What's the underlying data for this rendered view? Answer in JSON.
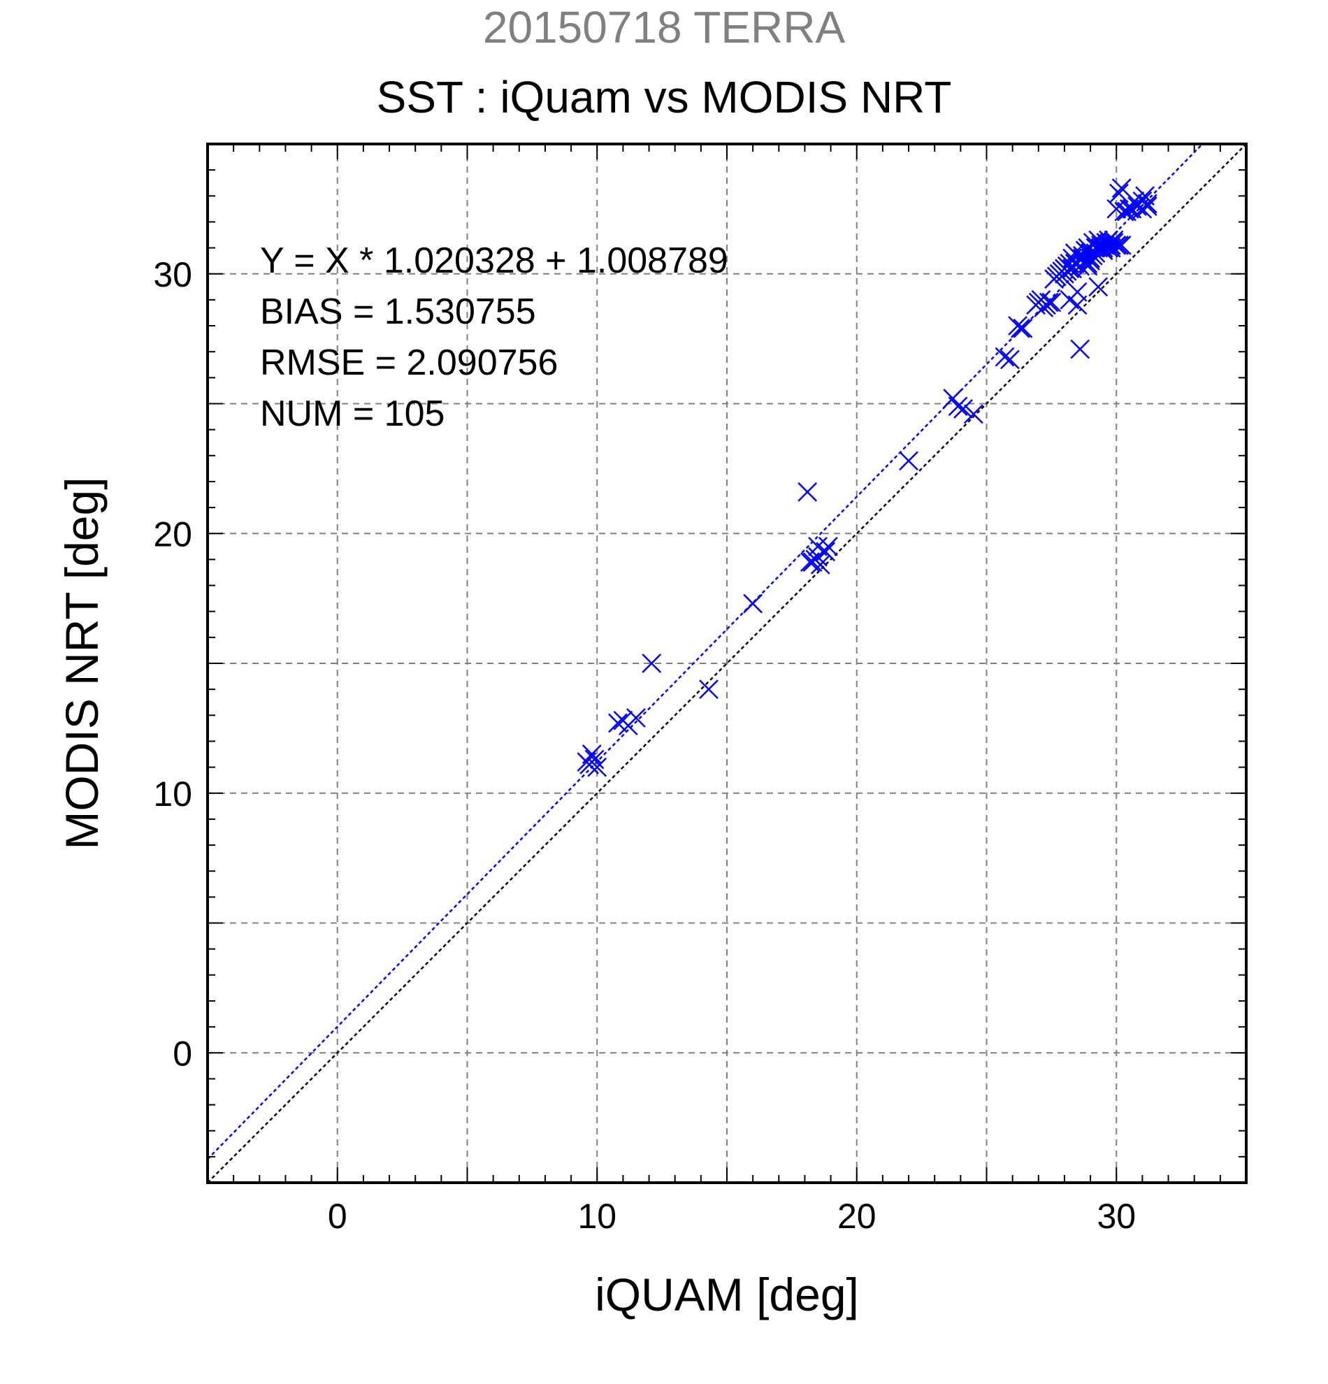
{
  "chart_data": {
    "type": "scatter",
    "title": "20150718 TERRA",
    "subtitle": "SST : iQuam vs MODIS NRT",
    "xlabel": "iQUAM [deg]",
    "ylabel": "MODIS NRT [deg]",
    "xlim": [
      -5,
      35
    ],
    "ylim": [
      -5,
      35
    ],
    "xticks": [
      0,
      10,
      20,
      30
    ],
    "yticks": [
      0,
      10,
      20,
      30
    ],
    "xtick_labels": [
      "0",
      "10",
      "20",
      "30"
    ],
    "ytick_labels": [
      "0",
      "10",
      "20",
      "30"
    ],
    "grid": true,
    "marker": "x",
    "series_color": "#0000ff",
    "stats": [
      "Y = X * 1.020328 + 1.008789",
      "BIAS = 1.530755",
      "RMSE = 2.090756",
      "NUM = 105"
    ],
    "fit_line": {
      "slope": 1.020328,
      "intercept": 1.008789,
      "color": "#0000ff"
    },
    "identity_line": {
      "slope": 1,
      "intercept": 0,
      "color": "#000000"
    },
    "x": [
      9.6,
      9.8,
      10.0,
      9.9,
      9.7,
      10.8,
      11.0,
      11.2,
      11.5,
      12.1,
      14.3,
      16.0,
      18.1,
      18.2,
      18.4,
      18.5,
      18.6,
      18.8,
      18.3,
      18.9,
      18.5,
      22.0,
      23.7,
      23.9,
      24.1,
      24.5,
      25.7,
      25.9,
      26.2,
      26.3,
      26.9,
      27.1,
      27.3,
      27.5,
      27.8,
      28.0,
      28.1,
      28.2,
      28.3,
      28.4,
      28.5,
      28.6,
      28.7,
      28.8,
      28.9,
      29.0,
      29.1,
      29.2,
      29.3,
      29.4,
      29.5,
      29.6,
      29.7,
      29.8,
      29.9,
      30.0,
      30.1,
      30.2,
      30.4,
      30.6,
      30.8,
      31.0,
      31.1,
      31.2,
      28.5,
      28.7,
      29.3,
      28.2,
      28.9,
      29.1,
      29.4,
      28.6,
      27.9,
      28.3,
      29.0,
      29.5,
      30.1,
      27.0,
      27.2,
      26.4,
      28.4,
      28.0,
      29.8,
      30.3,
      30.7,
      31.2,
      28.8,
      29.6,
      28.1,
      29.9,
      30.0,
      28.6,
      27.6,
      29.2,
      28.9,
      30.5,
      27.4,
      27.7,
      28.2,
      29.0,
      29.3,
      28.5,
      30.2,
      29.7,
      31.0
    ],
    "y": [
      11.2,
      11.5,
      11.0,
      11.3,
      11.1,
      12.7,
      12.8,
      12.6,
      12.9,
      15.0,
      14.0,
      17.3,
      21.6,
      18.9,
      19.0,
      19.5,
      18.8,
      19.3,
      18.9,
      19.5,
      19.1,
      22.8,
      25.2,
      24.9,
      24.8,
      24.6,
      26.8,
      26.7,
      28.0,
      27.9,
      28.8,
      29.0,
      28.8,
      28.9,
      30.0,
      30.2,
      30.3,
      30.4,
      30.6,
      30.8,
      29.3,
      27.1,
      30.7,
      30.9,
      31.0,
      30.8,
      31.2,
      31.0,
      31.3,
      31.1,
      31.0,
      31.2,
      31.3,
      31.1,
      31.2,
      32.5,
      31.1,
      33.3,
      32.4,
      32.5,
      32.6,
      32.5,
      33.0,
      32.7,
      28.8,
      30.6,
      29.5,
      29.0,
      30.4,
      30.7,
      31.0,
      30.3,
      30.1,
      30.2,
      30.5,
      30.9,
      33.1,
      28.9,
      28.7,
      27.9,
      30.4,
      30.0,
      31.0,
      32.4,
      32.8,
      32.6,
      30.5,
      31.2,
      30.1,
      31.3,
      31.1,
      30.6,
      29.8,
      30.8,
      30.3,
      32.5,
      28.9,
      29.9,
      30.2,
      30.6,
      31.0,
      30.4,
      31.1,
      31.0,
      32.8
    ]
  }
}
